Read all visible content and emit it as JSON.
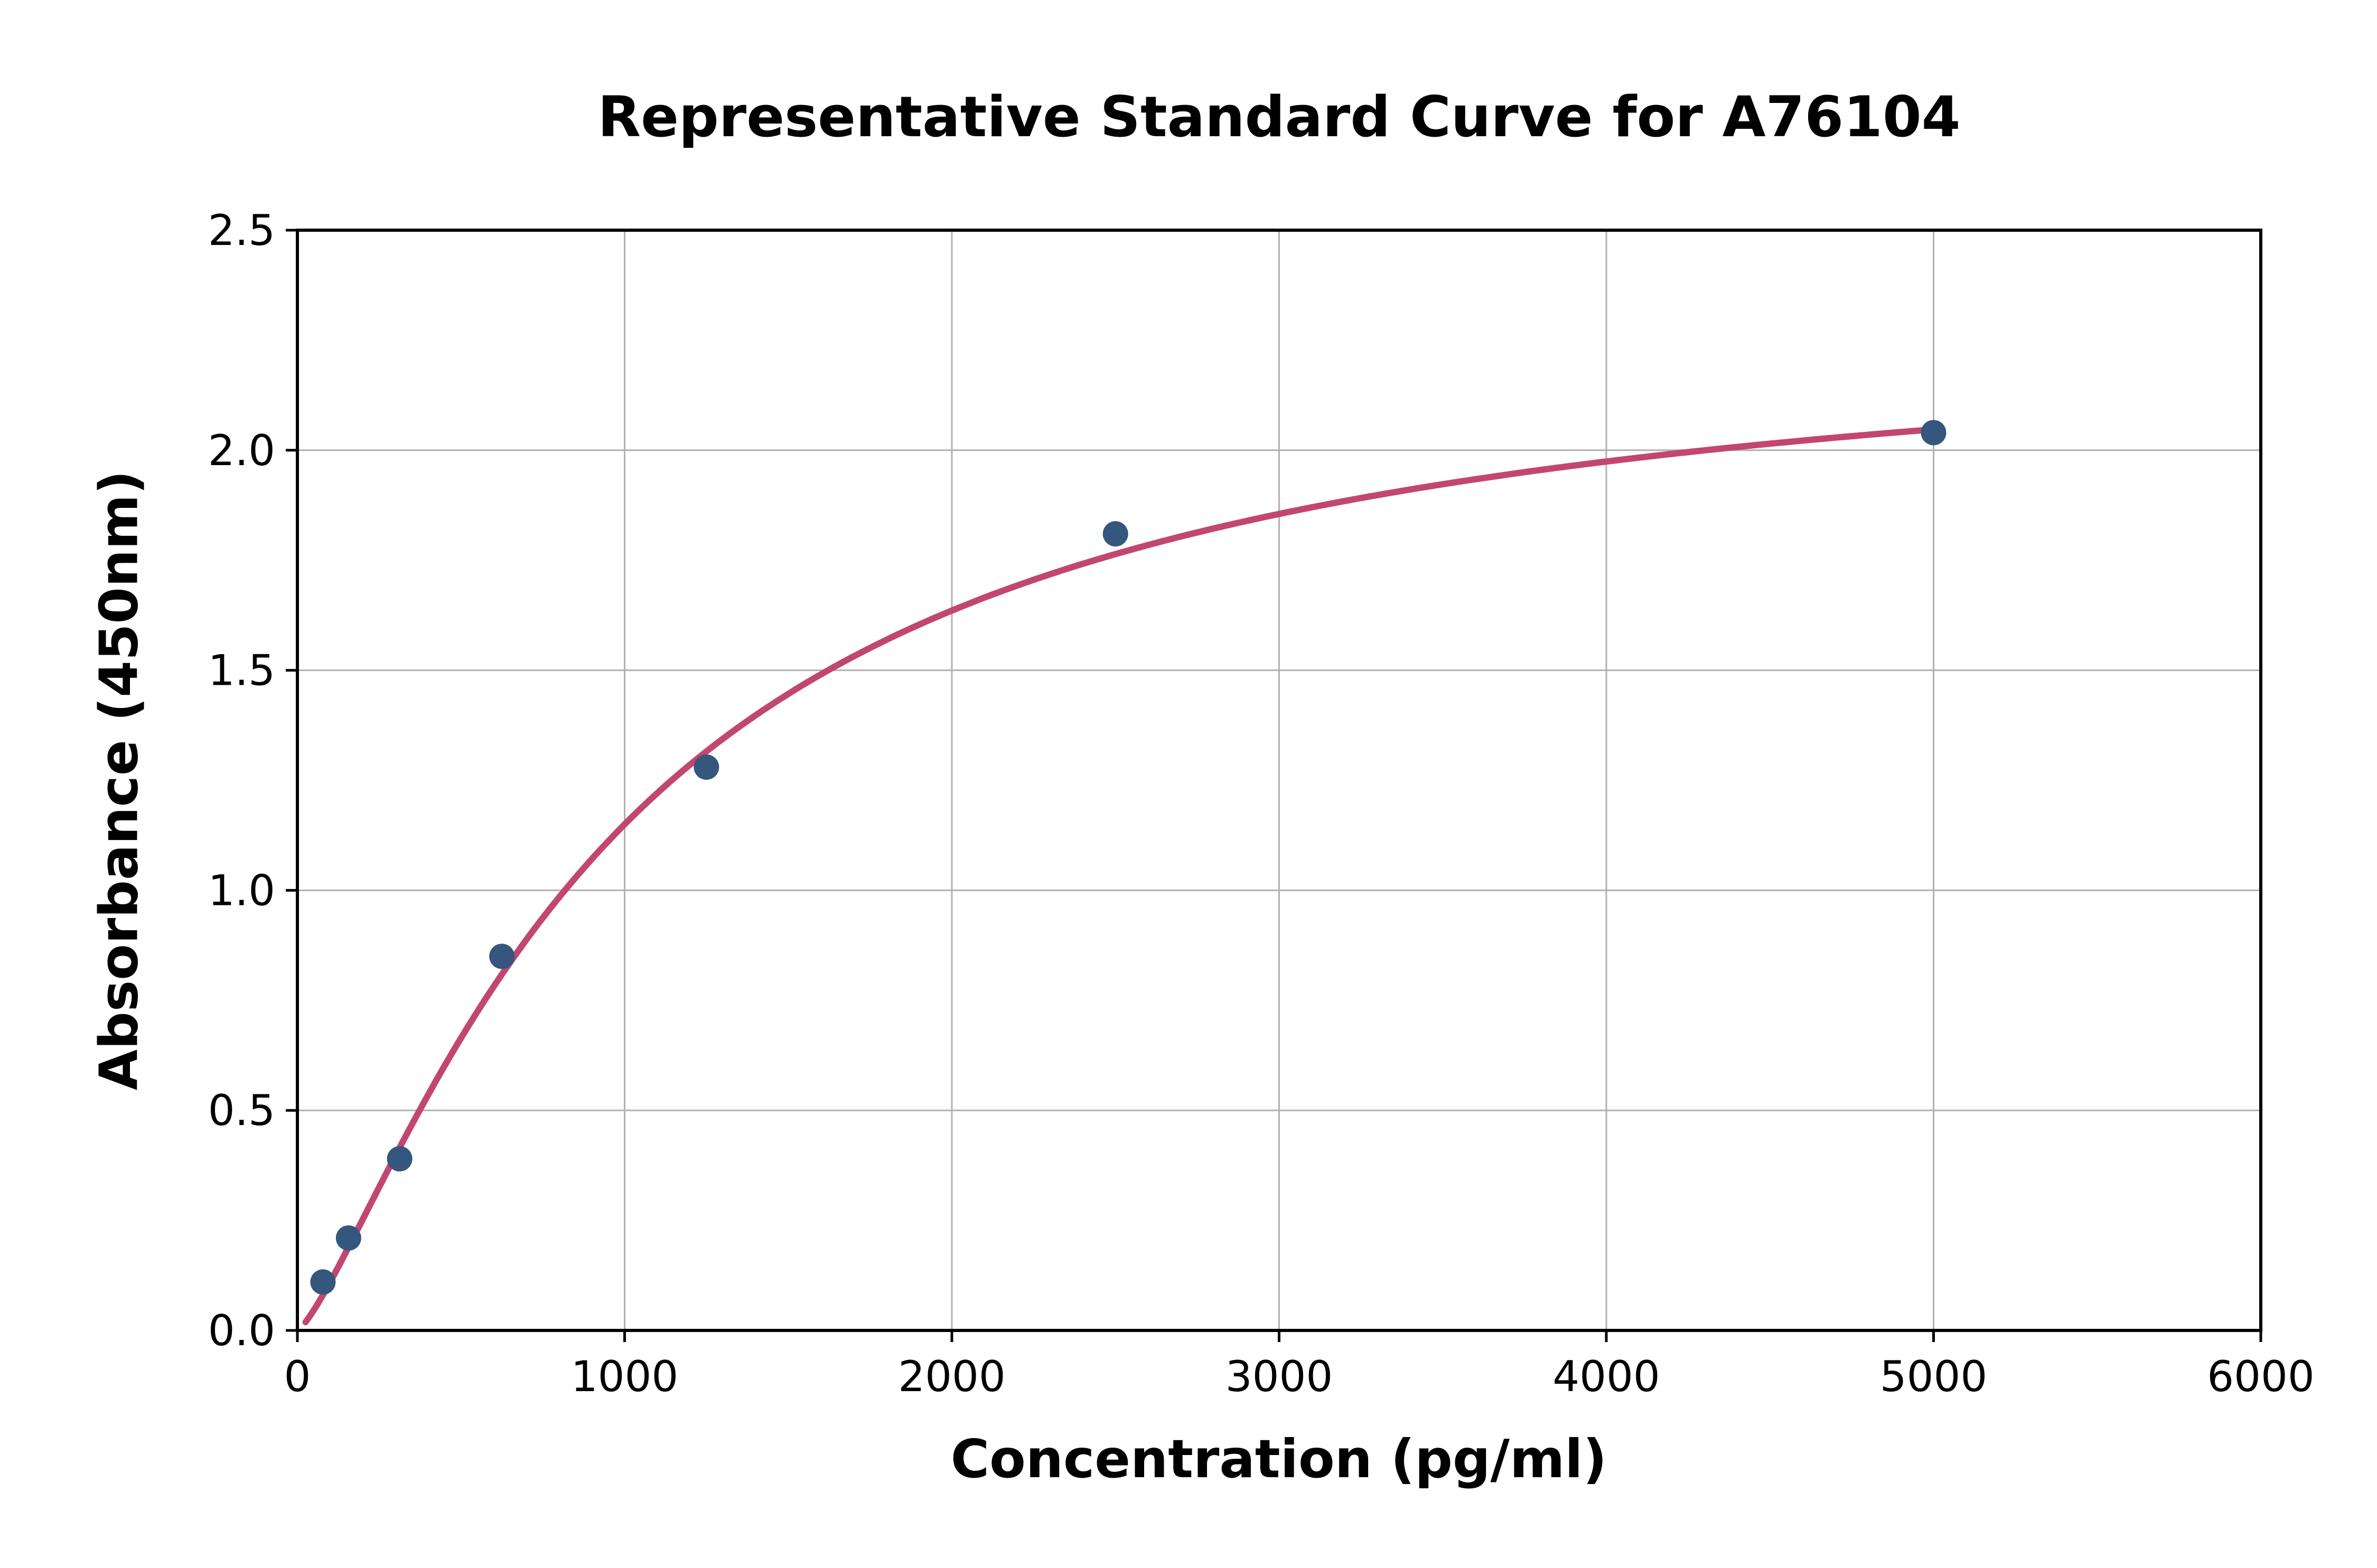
{
  "page": {
    "background": "#ffffff"
  },
  "chart_data": {
    "type": "scatter",
    "title": "Representative Standard Curve for A76104",
    "xlabel": "Concentration (pg/ml)",
    "ylabel": "Absorbance (450nm)",
    "xlim": [
      0,
      6000
    ],
    "ylim": [
      0,
      2.5
    ],
    "grid": true,
    "legend": "none",
    "x_ticks": [
      {
        "value": 0,
        "label": "0"
      },
      {
        "value": 1000,
        "label": "1000"
      },
      {
        "value": 2000,
        "label": "2000"
      },
      {
        "value": 3000,
        "label": "3000"
      },
      {
        "value": 4000,
        "label": "4000"
      },
      {
        "value": 5000,
        "label": "5000"
      },
      {
        "value": 6000,
        "label": "6000"
      }
    ],
    "y_ticks": [
      {
        "value": 0.0,
        "label": "0.0"
      },
      {
        "value": 0.5,
        "label": "0.5"
      },
      {
        "value": 1.0,
        "label": "1.0"
      },
      {
        "value": 1.5,
        "label": "1.5"
      },
      {
        "value": 2.0,
        "label": "2.0"
      },
      {
        "value": 2.5,
        "label": "2.5"
      }
    ],
    "points": [
      {
        "x": 78.1,
        "y": 0.11
      },
      {
        "x": 156.3,
        "y": 0.21
      },
      {
        "x": 312.5,
        "y": 0.39
      },
      {
        "x": 625,
        "y": 0.85
      },
      {
        "x": 1250,
        "y": 1.28
      },
      {
        "x": 2500,
        "y": 1.81
      },
      {
        "x": 5000,
        "y": 2.04
      }
    ],
    "fit_curve": {
      "model": "4PL",
      "params": {
        "a": 0,
        "d": 2.3,
        "c": 1000,
        "b": 1.3
      },
      "x_range": [
        25,
        5010
      ]
    },
    "colors": {
      "curve": "#c24770",
      "points": "#35567d",
      "grid": "#b0b0b0",
      "axis": "#000000",
      "text": "#000000"
    }
  }
}
